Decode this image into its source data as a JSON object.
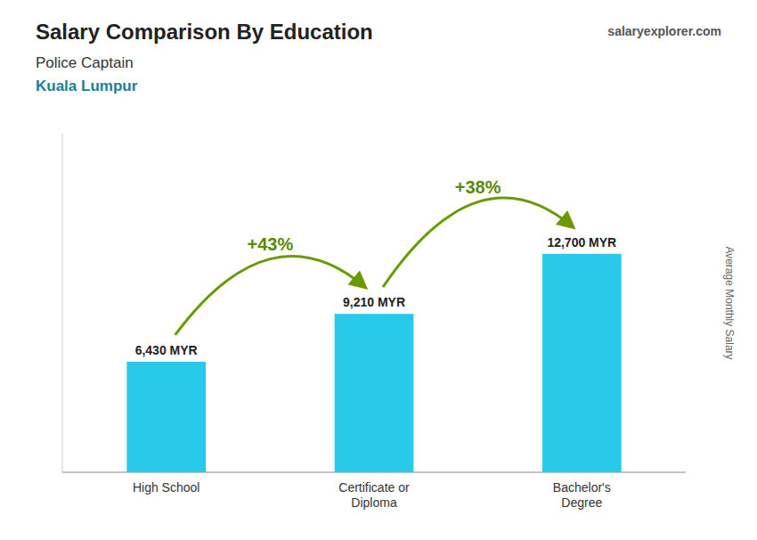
{
  "chart_data": {
    "type": "bar",
    "title": "Salary Comparison By Education",
    "subtitle": [
      "Police Captain",
      "Kuala Lumpur"
    ],
    "source": "salaryexplorer.com",
    "y_label": "Average Monthly Salary",
    "categories": [
      "High School",
      "Certificate or\nDiploma",
      "Bachelor's\nDegree"
    ],
    "values": [
      6430,
      9210,
      12700
    ],
    "value_labels": [
      "6,430 MYR",
      "9,210 MYR",
      "12,700 MYR"
    ],
    "annotations": [
      "+43%",
      "+38%"
    ],
    "color": "#29c9ea",
    "ylim": [
      0,
      19685
    ],
    "tick_labels": "x",
    "data_labels": true,
    "grid": false
  }
}
